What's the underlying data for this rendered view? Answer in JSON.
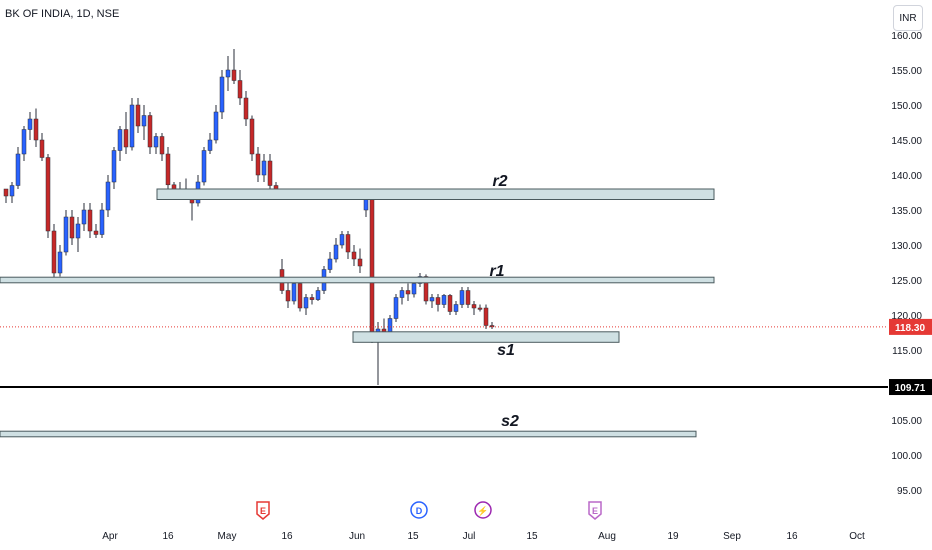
{
  "header": {
    "title": "BK OF INDIA, 1D, NSE",
    "currency": "INR"
  },
  "colors": {
    "up": "#2962ff",
    "down": "#c62828",
    "zone_fill": "#cfe0e3",
    "zone_stroke": "#4a5a5e",
    "price_badge": "#e53935"
  },
  "chart_data": {
    "type": "candlestick",
    "title": "BK OF INDIA, 1D, NSE",
    "y_ticks": [
      "95.00",
      "100.00",
      "105.00",
      "110.00",
      "115.00",
      "120.00",
      "125.00",
      "130.00",
      "135.00",
      "140.00",
      "145.00",
      "150.00",
      "155.00",
      "160.00"
    ],
    "ylim": [
      92,
      161
    ],
    "x_ticks": [
      "Apr",
      "16",
      "May",
      "16",
      "Jun",
      "15",
      "Jul",
      "15",
      "Aug",
      "19",
      "Sep",
      "16",
      "Oct"
    ],
    "current_price": {
      "label": "118.30",
      "value": 118.3
    },
    "level_line": {
      "label": "109.71",
      "value": 109.71
    },
    "zones": [
      {
        "label": "r2",
        "low": 136.5,
        "high": 138.0
      },
      {
        "label": "r1",
        "low": 124.6,
        "high": 125.4
      },
      {
        "label": "s1",
        "low": 116.1,
        "high": 117.6
      },
      {
        "label": "s2",
        "low": 102.6,
        "high": 103.4
      }
    ],
    "events": [
      {
        "label": "E",
        "kind": "earnings",
        "color": "#e53935"
      },
      {
        "label": "D",
        "kind": "dividend",
        "color": "#2962ff"
      },
      {
        "label": "⚡",
        "kind": "split",
        "color": "#9c27b0"
      },
      {
        "label": "E",
        "kind": "earnings-upcoming",
        "color": "#ba68c8"
      }
    ],
    "candles": [
      [
        138,
        138,
        136,
        137
      ],
      [
        137,
        139,
        136,
        138.5
      ],
      [
        138.5,
        144,
        138,
        143
      ],
      [
        143,
        147,
        142,
        146.5
      ],
      [
        146.5,
        149,
        145,
        148
      ],
      [
        148,
        149.5,
        144,
        145
      ],
      [
        145,
        146,
        142,
        142.5
      ],
      [
        142.5,
        143,
        131,
        132
      ],
      [
        132,
        133,
        125,
        126
      ],
      [
        126,
        130,
        125.5,
        129
      ],
      [
        129,
        135,
        128.5,
        134
      ],
      [
        134,
        135,
        130,
        131
      ],
      [
        131,
        134,
        129,
        133
      ],
      [
        133,
        136,
        132,
        135
      ],
      [
        135,
        136,
        131,
        132
      ],
      [
        132,
        133,
        131,
        131.5
      ],
      [
        131.5,
        136,
        131,
        135
      ],
      [
        135,
        140,
        134,
        139
      ],
      [
        139,
        144,
        138,
        143.5
      ],
      [
        143.5,
        147,
        142,
        146.5
      ],
      [
        146.5,
        149,
        143,
        144
      ],
      [
        144,
        151,
        143.5,
        150
      ],
      [
        150,
        151,
        146,
        147
      ],
      [
        147,
        150,
        145,
        148.5
      ],
      [
        148.5,
        149,
        143,
        144
      ],
      [
        144,
        146,
        143,
        145.5
      ],
      [
        145.5,
        146,
        142,
        143
      ],
      [
        143,
        144,
        138,
        138.6
      ],
      [
        138.6,
        139,
        137,
        137.5
      ],
      [
        137.5,
        139,
        136.5,
        138
      ],
      [
        138,
        139.5,
        137,
        137.8
      ],
      [
        137.8,
        138,
        133.5,
        136
      ],
      [
        136,
        140,
        135.5,
        139
      ],
      [
        139,
        144,
        138.5,
        143.5
      ],
      [
        143.5,
        146,
        143,
        145
      ],
      [
        145,
        150,
        144.5,
        149
      ],
      [
        149,
        155,
        148,
        154
      ],
      [
        154,
        157,
        152,
        155
      ],
      [
        155,
        158,
        153,
        153.5
      ],
      [
        153.5,
        155,
        150,
        151
      ],
      [
        151,
        152,
        147,
        148
      ],
      [
        148,
        148.5,
        142,
        143
      ],
      [
        143,
        144,
        139,
        140
      ],
      [
        140,
        143,
        139,
        142
      ],
      [
        142,
        143,
        138,
        138.5
      ],
      [
        138.5,
        139,
        137,
        137.5
      ],
      [
        126.5,
        128,
        123,
        123.5
      ],
      [
        123.5,
        125,
        121,
        122
      ],
      [
        122,
        125,
        121.5,
        124.5
      ],
      [
        124.5,
        125,
        120.5,
        121
      ],
      [
        121,
        123,
        120,
        122.5
      ],
      [
        122.5,
        123,
        121.5,
        122.2
      ],
      [
        122.2,
        124,
        122,
        123.5
      ],
      [
        123.5,
        127,
        123,
        126.5
      ],
      [
        126.5,
        129,
        126,
        128
      ],
      [
        128,
        131,
        127.5,
        130
      ],
      [
        130,
        132,
        129.5,
        131.5
      ],
      [
        131.5,
        132,
        128,
        129
      ],
      [
        129,
        130,
        127,
        128
      ],
      [
        128,
        129.5,
        126,
        127
      ],
      [
        135,
        137,
        134,
        136.5
      ],
      [
        136.5,
        137.5,
        116,
        117
      ],
      [
        117,
        119,
        110,
        118
      ],
      [
        118,
        119.5,
        116.5,
        117
      ],
      [
        117,
        120,
        116.5,
        119.5
      ],
      [
        119.5,
        123,
        119,
        122.5
      ],
      [
        122.5,
        124,
        121.5,
        123.5
      ],
      [
        123.5,
        124.5,
        122,
        123
      ],
      [
        123,
        125,
        122.5,
        124.5
      ],
      [
        124.5,
        126,
        124,
        125.5
      ],
      [
        125.5,
        125.8,
        121.5,
        122
      ],
      [
        122,
        123,
        121,
        122.5
      ],
      [
        122.5,
        123,
        120.5,
        121.5
      ],
      [
        121.5,
        123,
        121,
        122.8
      ],
      [
        122.8,
        123,
        120,
        120.5
      ],
      [
        120.5,
        122,
        120,
        121.5
      ],
      [
        121.5,
        124,
        121,
        123.5
      ],
      [
        123.5,
        124,
        121,
        121.5
      ],
      [
        121.5,
        122,
        120,
        121
      ],
      [
        121,
        121.5,
        120.5,
        120.8
      ],
      [
        121,
        121.5,
        118,
        118.5
      ],
      [
        118.5,
        119,
        118,
        118.3
      ]
    ],
    "candle_x": [
      0,
      6,
      12,
      18,
      24,
      30,
      36,
      42,
      48,
      54,
      60,
      66,
      72,
      78,
      84,
      90,
      96,
      102,
      108,
      114,
      120,
      126,
      132,
      138,
      144,
      150,
      156,
      162,
      168,
      174,
      180,
      186,
      192,
      198,
      204,
      210,
      216,
      222,
      228,
      234,
      240,
      246,
      252,
      258,
      264,
      270,
      276,
      282,
      288,
      294,
      300,
      306,
      312,
      318,
      324,
      330,
      336,
      342,
      348,
      354,
      360,
      366,
      372,
      378,
      384,
      390,
      396,
      402,
      408,
      414,
      420,
      426,
      432,
      438,
      444,
      450,
      456,
      462,
      468,
      474,
      480,
      486
    ]
  }
}
